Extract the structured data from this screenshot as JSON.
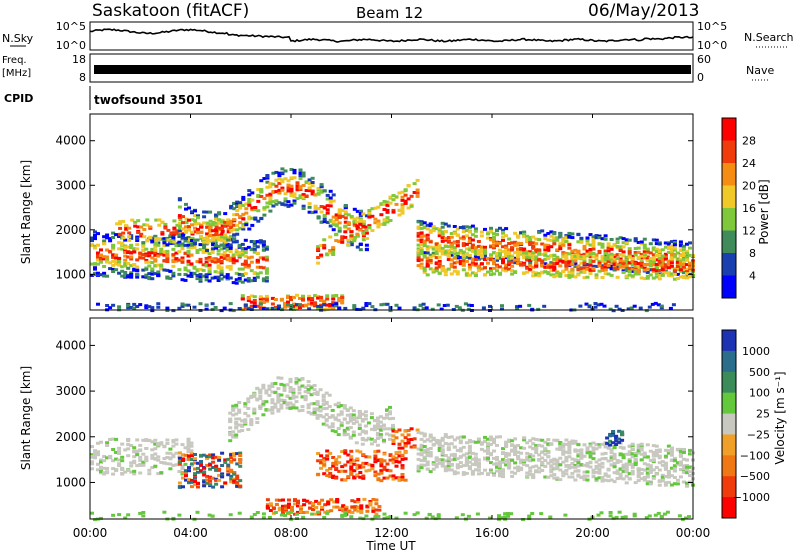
{
  "header": {
    "station": "Saskatoon (fitACF)",
    "beam": "Beam 12",
    "date": "06/May/2013"
  },
  "top_panels": {
    "nsky": {
      "label": "N.Sky",
      "right_label": "N.Search",
      "left_ticks": [
        "10^5",
        "10^0"
      ],
      "right_ticks": [
        "10^5",
        "10^0"
      ]
    },
    "freq": {
      "label_line1": "Freq.",
      "label_line2": "[MHz]",
      "right_label": "Nave",
      "left_ticks": [
        "18",
        "8"
      ],
      "right_ticks": [
        "60",
        "0"
      ]
    },
    "cpid": {
      "label": "CPID",
      "value": "twofsound 3501"
    }
  },
  "chart_data": [
    {
      "type": "heatmap",
      "title": "",
      "quantity": "Power",
      "ylabel": "Slant Range [km]",
      "ylim": [
        200,
        4600
      ],
      "yticks": [
        "1000",
        "2000",
        "3000",
        "4000"
      ],
      "xlim": [
        "00:00",
        "24:00"
      ],
      "colorbar": {
        "label": "Power [dB]",
        "ticks": [
          "4",
          "8",
          "12",
          "16",
          "20",
          "24",
          "28"
        ],
        "colors": [
          "#0000ff",
          "#1a3fb0",
          "#3f8c5a",
          "#7fc83c",
          "#f0c828",
          "#f58c14",
          "#f03c0a",
          "#ff0000"
        ]
      }
    },
    {
      "type": "heatmap",
      "title": "",
      "quantity": "Velocity",
      "ylabel": "Slant Range [km]",
      "ylim": [
        200,
        4600
      ],
      "yticks": [
        "1000",
        "2000",
        "3000",
        "4000"
      ],
      "xlim": [
        "00:00",
        "24:00"
      ],
      "colorbar": {
        "label": "Velocity [m s⁻¹]",
        "ticks": [
          "1000",
          "500",
          "100",
          "25",
          "−25",
          "−100",
          "−500",
          "−1000"
        ],
        "colors": [
          "#1e32b4",
          "#2a6e8c",
          "#3c8c5a",
          "#64c83c",
          "#c8c8c0",
          "#f0a028",
          "#f07814",
          "#f03c0a",
          "#ff0000"
        ]
      }
    }
  ],
  "x_axis": {
    "label": "Time UT",
    "ticks": [
      "00:00",
      "04:00",
      "08:00",
      "12:00",
      "16:00",
      "20:00",
      "00:00"
    ]
  }
}
